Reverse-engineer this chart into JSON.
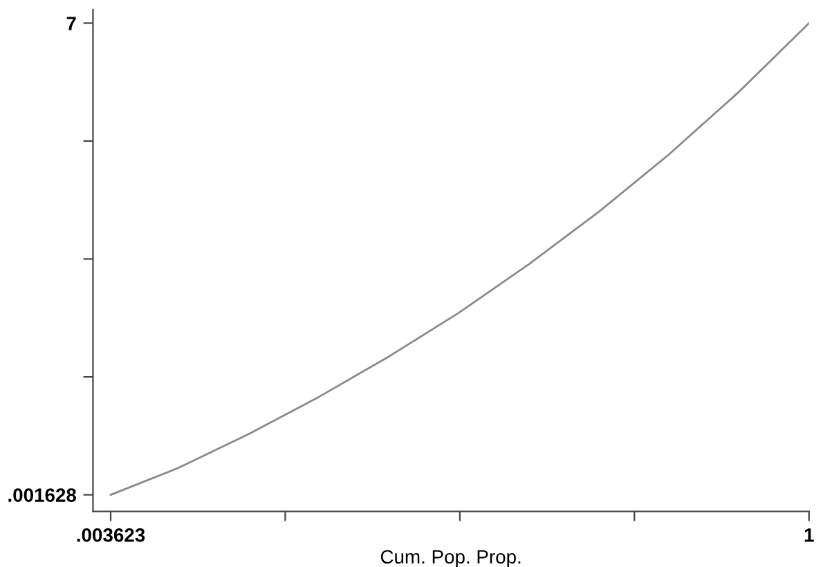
{
  "chart_data": {
    "type": "line",
    "xlabel": "Cum. Pop. Prop.",
    "x": [
      0.003623,
      0.1,
      0.2,
      0.3,
      0.4,
      0.5,
      0.6,
      0.7,
      0.8,
      0.9,
      1
    ],
    "series": [
      {
        "color": "#8a8a8a",
        "values": [
          0.0016,
          0.4,
          0.9,
          1.45,
          2.05,
          2.7,
          3.42,
          4.2,
          5.05,
          5.98,
          7
        ]
      }
    ],
    "xlim": [
      -0.0216,
      1
    ],
    "ylim": [
      -0.245,
      7.2
    ],
    "xticks": [
      {
        "value": 0.003623,
        "label": ".003623"
      },
      {
        "value": 0.2527,
        "label": null
      },
      {
        "value": 0.5018,
        "label": null
      },
      {
        "value": 0.7509,
        "label": null
      },
      {
        "value": 1,
        "label": "1"
      }
    ],
    "yticks": [
      {
        "value": 0.001628,
        "label": ".001628"
      },
      {
        "value": 1.7512,
        "label": null
      },
      {
        "value": 3.5008,
        "label": null
      },
      {
        "value": 5.2504,
        "label": null
      },
      7
    ],
    "grid": false,
    "legend": false,
    "marker": "none",
    "line_style": "solid"
  }
}
